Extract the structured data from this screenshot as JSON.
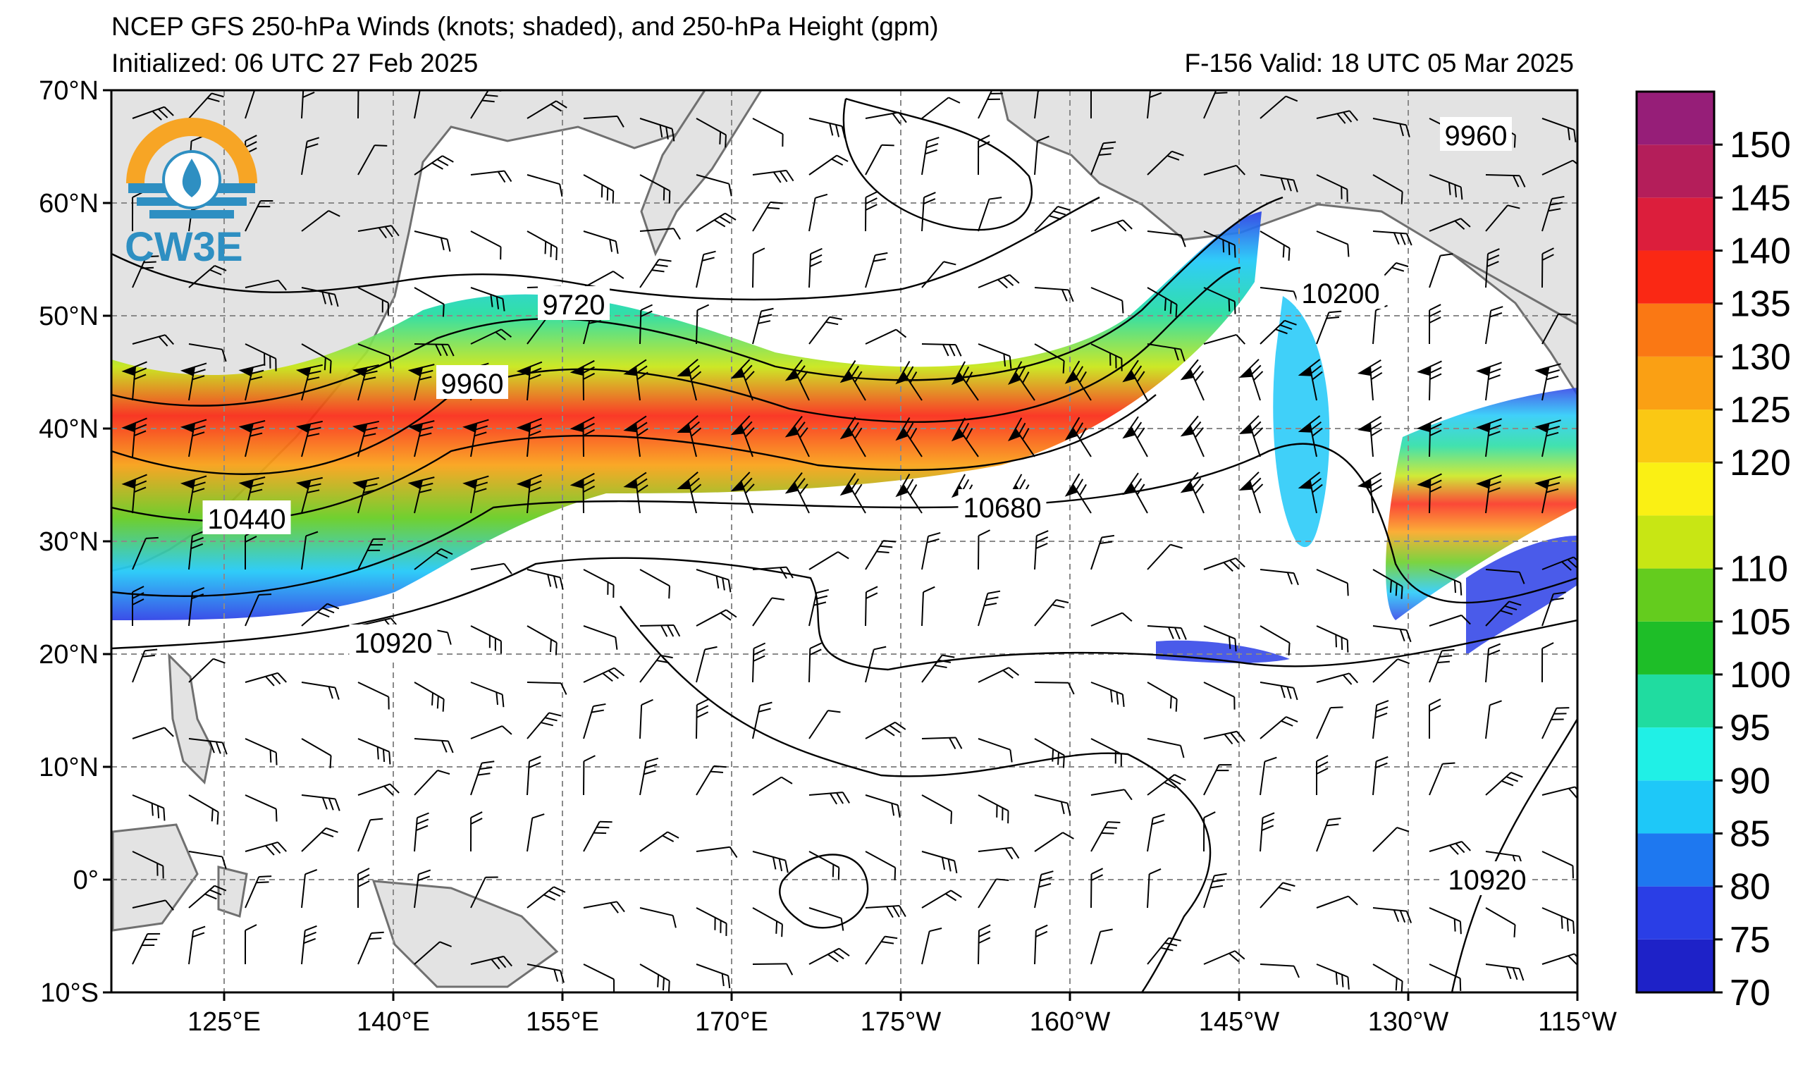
{
  "header": {
    "title": "NCEP GFS 250-hPa Winds (knots; shaded), and 250-hPa Height (gpm)",
    "initialized": "Initialized: 06 UTC 27 Feb 2025",
    "valid": "F-156  Valid: 18 UTC 05 Mar 2025"
  },
  "logo": {
    "text": "CW3E",
    "icon": "water-drop-globe-icon"
  },
  "axes": {
    "lat_labels": [
      "70°N",
      "60°N",
      "50°N",
      "40°N",
      "30°N",
      "20°N",
      "10°N",
      "0°",
      "10°S"
    ],
    "lat_values": [
      70,
      60,
      50,
      40,
      30,
      20,
      10,
      0,
      -10
    ],
    "lon_labels": [
      "125°E",
      "140°E",
      "155°E",
      "170°E",
      "175°W",
      "160°W",
      "145°W",
      "130°W",
      "115°W"
    ],
    "lon_values": [
      125,
      140,
      155,
      170,
      185,
      200,
      215,
      230,
      245
    ],
    "lon_range": [
      115,
      245
    ],
    "lat_range": [
      -10,
      70
    ]
  },
  "colorbar": {
    "levels": [
      "70",
      "75",
      "80",
      "85",
      "90",
      "95",
      "100",
      "105",
      "110",
      "115",
      "120",
      "125",
      "130",
      "135",
      "140",
      "145",
      "150",
      "155"
    ],
    "labels": [
      "70",
      "75",
      "80",
      "85",
      "90",
      "95",
      "100",
      "105",
      "110",
      "120",
      "125",
      "130",
      "135",
      "140",
      "145",
      "150"
    ],
    "colors": [
      "#1e22c8",
      "#2a3ee6",
      "#1e78f0",
      "#1ec8f8",
      "#20f0e6",
      "#20dca0",
      "#1ebe28",
      "#64cc1e",
      "#c8e614",
      "#faf014",
      "#fac814",
      "#faa014",
      "#fa7814",
      "#fa2814",
      "#dc1e3c",
      "#b41e5a",
      "#961e78",
      "#7a1e8c"
    ]
  },
  "height_contour_labels": [
    {
      "text": "9720",
      "lon": 156,
      "lat": 51
    },
    {
      "text": "9960",
      "lon": 147,
      "lat": 44
    },
    {
      "text": "10440",
      "lon": 127,
      "lat": 32
    },
    {
      "text": "10680",
      "lon": 194,
      "lat": 33
    },
    {
      "text": "10920",
      "lon": 140,
      "lat": 21
    },
    {
      "text": "10200",
      "lon": 224,
      "lat": 52
    },
    {
      "text": "9960",
      "lon": 236,
      "lat": 66
    },
    {
      "text": "10920",
      "lon": 237,
      "lat": 0
    }
  ],
  "colors": {
    "land": "#e3e3e3",
    "coast": "#707070",
    "grid": "#8a8a8a",
    "contour": "#000000",
    "logo_orange": "#f7a525",
    "logo_blue": "#2e8fc2"
  }
}
